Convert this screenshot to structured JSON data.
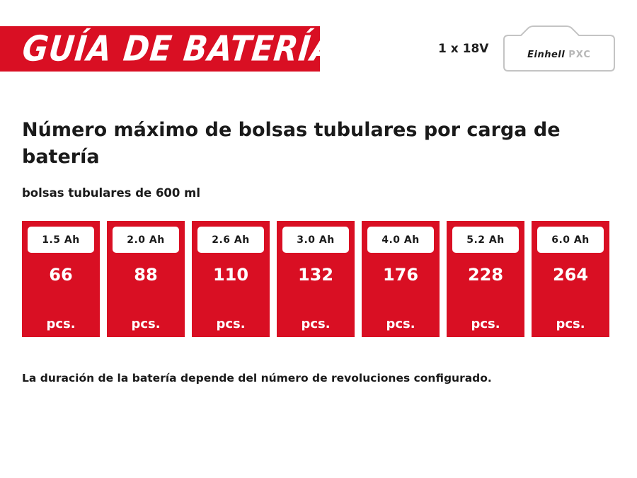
{
  "header": {
    "title": "GUÍA DE BATERÍAS",
    "voltage": "1 x 18V",
    "logo": {
      "brand": "Einhell",
      "system": "PXC"
    }
  },
  "main": {
    "heading": "Número máximo de bolsas tubulares por carga de batería",
    "subheading": "bolsas tubulares de 600 ml",
    "cards": [
      {
        "capacity": "1.5 Ah",
        "value": "66",
        "unit": "pcs."
      },
      {
        "capacity": "2.0 Ah",
        "value": "88",
        "unit": "pcs."
      },
      {
        "capacity": "2.6 Ah",
        "value": "110",
        "unit": "pcs."
      },
      {
        "capacity": "3.0 Ah",
        "value": "132",
        "unit": "pcs."
      },
      {
        "capacity": "4.0 Ah",
        "value": "176",
        "unit": "pcs."
      },
      {
        "capacity": "5.2 Ah",
        "value": "228",
        "unit": "pcs."
      },
      {
        "capacity": "6.0 Ah",
        "value": "264",
        "unit": "pcs."
      }
    ],
    "note": "La duración de la batería depende del número de revoluciones configurado."
  },
  "colors": {
    "accent": "#d90f23",
    "text": "#1a1a1a",
    "card_text": "#ffffff"
  }
}
